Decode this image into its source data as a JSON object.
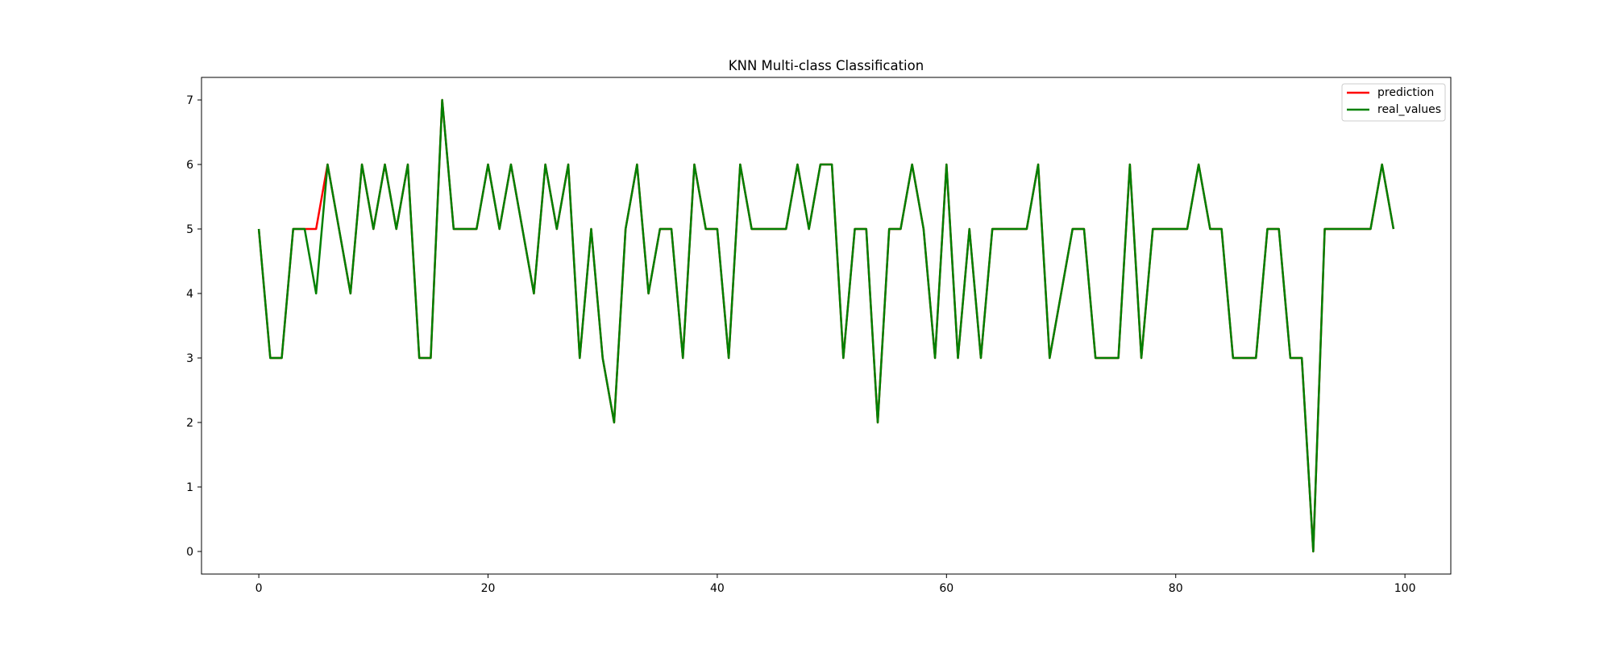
{
  "chart_data": {
    "type": "line",
    "title": "KNN Multi-class Classification",
    "xlabel": "",
    "ylabel": "",
    "xlim": [
      -5,
      104
    ],
    "ylim": [
      -0.35,
      7.35
    ],
    "xticks": [
      0,
      20,
      40,
      60,
      80,
      100
    ],
    "yticks": [
      0,
      1,
      2,
      3,
      4,
      5,
      6,
      7
    ],
    "grid": false,
    "legend_position": "top-right",
    "series": [
      {
        "name": "prediction",
        "color": "#ff0000",
        "values": [
          5,
          3,
          3,
          5,
          5,
          5,
          6,
          5,
          4,
          6,
          5,
          6,
          5,
          6,
          3,
          3,
          7,
          5,
          5,
          5,
          6,
          5,
          6,
          5,
          4,
          6,
          5,
          6,
          3,
          5,
          3,
          2,
          5,
          6,
          4,
          5,
          5,
          3,
          6,
          5,
          5,
          3,
          6,
          5,
          5,
          5,
          5,
          6,
          5,
          6,
          6,
          3,
          5,
          5,
          2,
          5,
          5,
          6,
          5,
          3,
          6,
          3,
          5,
          3,
          5,
          5,
          5,
          5,
          6,
          3,
          4,
          5,
          5,
          3,
          3,
          3,
          6,
          3,
          5,
          5,
          5,
          5,
          6,
          5,
          5,
          3,
          3,
          3,
          5,
          5,
          3,
          3,
          0,
          5,
          5,
          5,
          5,
          5,
          6,
          5
        ]
      },
      {
        "name": "real_values",
        "color": "#008000",
        "values": [
          5,
          3,
          3,
          5,
          5,
          4,
          6,
          5,
          4,
          6,
          5,
          6,
          5,
          6,
          3,
          3,
          7,
          5,
          5,
          5,
          6,
          5,
          6,
          5,
          4,
          6,
          5,
          6,
          3,
          5,
          3,
          2,
          5,
          6,
          4,
          5,
          5,
          3,
          6,
          5,
          5,
          3,
          6,
          5,
          5,
          5,
          5,
          6,
          5,
          6,
          6,
          3,
          5,
          5,
          2,
          5,
          5,
          6,
          5,
          3,
          6,
          3,
          5,
          3,
          5,
          5,
          5,
          5,
          6,
          3,
          4,
          5,
          5,
          3,
          3,
          3,
          6,
          3,
          5,
          5,
          5,
          5,
          6,
          5,
          5,
          3,
          3,
          3,
          5,
          5,
          3,
          3,
          0,
          5,
          5,
          5,
          5,
          5,
          6,
          5
        ]
      }
    ]
  }
}
